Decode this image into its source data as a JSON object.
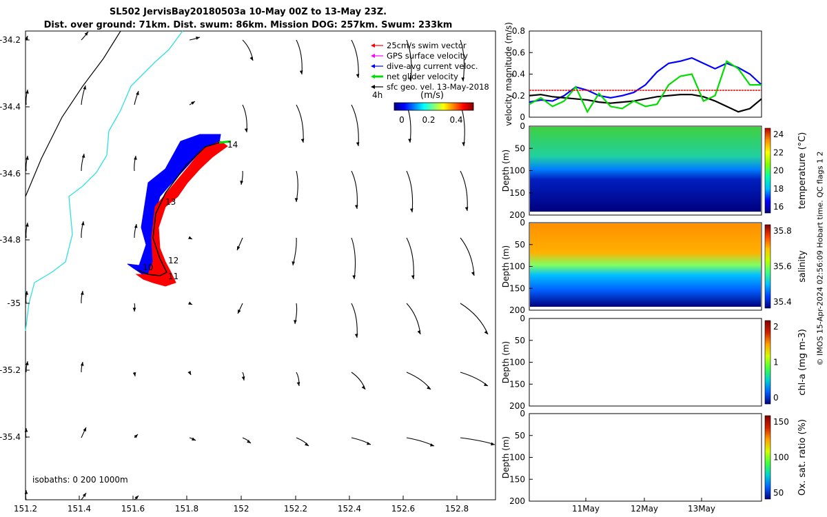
{
  "title": {
    "line1": "SL502 JervisBay20180503a 10-May 00Z to 13-May 23Z.",
    "line2": "Dist. over ground: 71km. Dist. swum: 86km. Mission DOG: 257km. Swum: 233km"
  },
  "credit": "© IMOS 15-Apr-2024 02:56:09 Hobart time. QC flags 1  2",
  "map": {
    "legend": [
      {
        "label": "25cm/s swim vector",
        "color": "#ff0000"
      },
      {
        "label": "GPS surface velocity",
        "color": "#ff00ff"
      },
      {
        "label": "dive-avg current veloc.",
        "color": "#0000ff"
      },
      {
        "label": "net glider velocity",
        "color": "#00dd00"
      },
      {
        "label": "sfc geo. vel. 13-May-2018",
        "color": "#000000"
      }
    ],
    "colorbar_label": "(m/s)",
    "colorbar_note": "4h",
    "colorbar_ticks": [
      "0",
      "0.2",
      "0.4"
    ],
    "isobaths_label": "isobaths: 0   200  1000m",
    "x_ticks": [
      "151.2",
      "151.4",
      "151.6",
      "151.8",
      "152",
      "152.2",
      "152.4",
      "152.6",
      "152.8"
    ],
    "y_ticks": [
      "-34.2",
      "-34.4",
      "-34.6",
      "-34.8",
      "-35",
      "-35.2",
      "-35.4"
    ],
    "track_labels": [
      "14",
      "13",
      "12",
      "10",
      "11"
    ],
    "colors": {
      "swim": "#ff0000",
      "current": "#0000ff",
      "coast": "#2de0e0",
      "isobath": "#000000",
      "net": "#00dd00"
    }
  },
  "chart_data": [
    {
      "type": "line",
      "ylabel": "velocity magnitude (m/s)",
      "ylim": [
        0,
        0.8
      ],
      "y_ticks": [
        "0",
        "0.2",
        "0.4",
        "0.6",
        "0.8"
      ],
      "x": [
        0,
        0.05,
        0.1,
        0.15,
        0.2,
        0.25,
        0.3,
        0.35,
        0.4,
        0.45,
        0.5,
        0.55,
        0.6,
        0.65,
        0.7,
        0.75,
        0.8,
        0.85,
        0.9,
        0.95,
        1.0
      ],
      "series": [
        {
          "color": "#0000ff",
          "values": [
            0.14,
            0.16,
            0.15,
            0.2,
            0.28,
            0.25,
            0.2,
            0.18,
            0.2,
            0.23,
            0.3,
            0.42,
            0.5,
            0.52,
            0.55,
            0.5,
            0.45,
            0.5,
            0.46,
            0.4,
            0.3
          ]
        },
        {
          "color": "#000000",
          "values": [
            0.2,
            0.21,
            0.19,
            0.18,
            0.17,
            0.16,
            0.14,
            0.13,
            0.14,
            0.15,
            0.17,
            0.19,
            0.2,
            0.21,
            0.21,
            0.19,
            0.15,
            0.1,
            0.05,
            0.08,
            0.17
          ]
        },
        {
          "color": "#00dd00",
          "values": [
            0.12,
            0.18,
            0.1,
            0.15,
            0.28,
            0.05,
            0.22,
            0.1,
            0.08,
            0.15,
            0.1,
            0.12,
            0.3,
            0.38,
            0.4,
            0.15,
            0.2,
            0.52,
            0.45,
            0.3,
            0.3
          ]
        },
        {
          "color": "#ff0000",
          "values": [
            0.25,
            0.25,
            0.25,
            0.25,
            0.25,
            0.25,
            0.25,
            0.25,
            0.25,
            0.25,
            0.25,
            0.25,
            0.25,
            0.25,
            0.25,
            0.25,
            0.25,
            0.25,
            0.25,
            0.25,
            0.25
          ]
        }
      ]
    },
    {
      "type": "heatmap",
      "ylabel": "Depth (m)",
      "ylim": [
        200,
        0
      ],
      "y_ticks": [
        "0",
        "50",
        "100",
        "150",
        "200"
      ],
      "cbar_label": "temperature (°C)",
      "cbar_ticks": [
        "16",
        "18",
        "20",
        "22",
        "24"
      ]
    },
    {
      "type": "heatmap",
      "ylabel": "Depth (m)",
      "ylim": [
        200,
        0
      ],
      "y_ticks": [
        "0",
        "50",
        "100",
        "150",
        "200"
      ],
      "cbar_label": "salinity",
      "cbar_ticks": [
        "35.4",
        "35.6",
        "35.8"
      ]
    },
    {
      "type": "heatmap",
      "ylabel": "Depth (m)",
      "ylim": [
        200,
        0
      ],
      "y_ticks": [
        "0",
        "50",
        "100",
        "150",
        "200"
      ],
      "cbar_label": "chl-a (mg m-3)",
      "cbar_ticks": [
        "0",
        "1",
        "2"
      ]
    },
    {
      "type": "heatmap",
      "ylabel": "Depth (m)",
      "ylim": [
        200,
        0
      ],
      "y_ticks": [
        "0",
        "50",
        "100",
        "150",
        "200"
      ],
      "cbar_label": "Ox. sat. ratio (%)",
      "cbar_ticks": [
        "50",
        "100",
        "150"
      ],
      "x_ticks": [
        "11May",
        "12May",
        "13May"
      ]
    }
  ]
}
